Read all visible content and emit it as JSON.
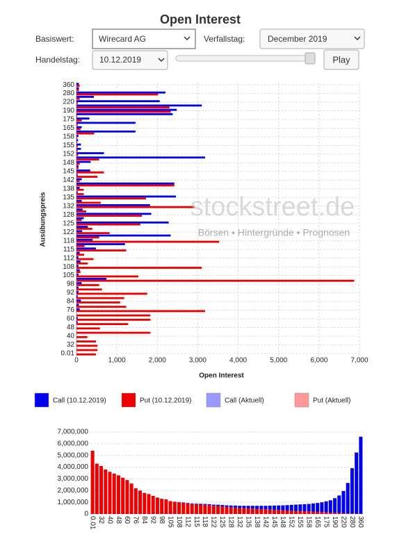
{
  "page": {
    "title": "Open Interest",
    "controls": {
      "underlying_label": "Basiswert:",
      "underlying": "Wirecard AG",
      "expiry_label": "Verfallstag:",
      "expiry": "December 2019",
      "trade_date_label": "Handelstag:",
      "trade_date": "10.12.2019",
      "play": "Play"
    },
    "watermark": {
      "brand": "stockstreet.de",
      "tagline": "Börsen • Hintergründe • Prognosen"
    }
  },
  "chart_data": [
    {
      "type": "hbar",
      "xlabel": "Open Interest",
      "ylabel": "Ausübungspreis",
      "categories": [
        "0.01",
        null,
        "32",
        null,
        "40",
        null,
        "48",
        null,
        "60",
        null,
        "76",
        null,
        "84",
        null,
        "92",
        null,
        "98",
        null,
        "105",
        null,
        "108",
        null,
        "112",
        null,
        "115",
        null,
        "118",
        null,
        "122",
        null,
        "125",
        null,
        "128",
        null,
        "132",
        null,
        "135",
        null,
        "138",
        null,
        "142",
        null,
        "145",
        null,
        "148",
        null,
        "152",
        null,
        "155",
        null,
        "158",
        null,
        "165",
        null,
        "175",
        null,
        "190",
        null,
        "220",
        null,
        "280",
        null,
        "360"
      ],
      "series": [
        {
          "name": "Call (10.12.2019)",
          "color": "#0000ee",
          "values": [
            0,
            0,
            0,
            0,
            0,
            0,
            0,
            30,
            30,
            0,
            80,
            60,
            110,
            30,
            50,
            50,
            130,
            740,
            50,
            80,
            50,
            100,
            50,
            80,
            480,
            1200,
            400,
            2330,
            140,
            280,
            2280,
            180,
            1850,
            150,
            1820,
            130,
            2460,
            30,
            80,
            2420,
            130,
            30,
            340,
            50,
            350,
            3180,
            680,
            110,
            110,
            40,
            50,
            1460,
            130,
            1460,
            320,
            2380,
            2480,
            3100,
            2060,
            430,
            2200,
            60,
            60
          ]
        },
        {
          "name": "Put (10.12.2019)",
          "color": "#ee0000",
          "values": [
            480,
            520,
            520,
            480,
            270,
            1830,
            580,
            1280,
            1830,
            1830,
            3180,
            1230,
            1080,
            1180,
            1750,
            630,
            560,
            6870,
            1530,
            100,
            3100,
            280,
            420,
            190,
            1230,
            200,
            3530,
            560,
            820,
            390,
            1580,
            130,
            1620,
            240,
            2920,
            600,
            1720,
            180,
            180,
            2420,
            80,
            520,
            680,
            50,
            80,
            560,
            40,
            30,
            30,
            20,
            20,
            440,
            100,
            30,
            130,
            20,
            2330,
            2300,
            30,
            80,
            2020,
            60,
            80
          ]
        },
        {
          "name": "Call (Aktuell)",
          "color": "#9999ff",
          "values": [
            null,
            null,
            null,
            null,
            null,
            null,
            null,
            null,
            null,
            null,
            null,
            null,
            null,
            null,
            null,
            null,
            null,
            null,
            null,
            null,
            null,
            null,
            null,
            null,
            null,
            null,
            null,
            null,
            null,
            null,
            null,
            null,
            null,
            null,
            null,
            null,
            null,
            null,
            null,
            null,
            null,
            null,
            null,
            null,
            null,
            null,
            null,
            null,
            null,
            null,
            null,
            null,
            null,
            null,
            null,
            null,
            null,
            null,
            null,
            null,
            null,
            null,
            null
          ]
        },
        {
          "name": "Put (Aktuell)",
          "color": "#ff9999",
          "values": [
            null,
            null,
            null,
            null,
            null,
            null,
            null,
            null,
            null,
            null,
            null,
            null,
            null,
            null,
            null,
            null,
            null,
            null,
            null,
            null,
            null,
            null,
            null,
            null,
            null,
            null,
            null,
            null,
            null,
            null,
            null,
            null,
            null,
            null,
            null,
            null,
            null,
            null,
            null,
            null,
            null,
            null,
            null,
            null,
            null,
            null,
            null,
            null,
            null,
            null,
            null,
            null,
            null,
            null,
            null,
            null,
            null,
            null,
            null,
            null,
            null,
            null,
            null
          ]
        }
      ],
      "xlim": [
        0,
        7000
      ],
      "xticks": [
        0,
        {
          "value": 1000,
          "label": "1,000"
        },
        {
          "value": 2000,
          "label": "2,000"
        },
        {
          "value": 3000,
          "label": "3,000"
        },
        {
          "value": 4000,
          "label": "4,000"
        },
        {
          "value": 5000,
          "label": "5,000"
        },
        {
          "value": 6000,
          "label": "6,000"
        },
        {
          "value": 7000,
          "label": "7,000"
        }
      ],
      "grid": true
    },
    {
      "type": "stacked_bar",
      "categories": [
        "0.01",
        null,
        "32",
        null,
        "40",
        null,
        "48",
        null,
        "60",
        null,
        "76",
        null,
        "84",
        null,
        "92",
        null,
        "98",
        null,
        "105",
        null,
        "108",
        null,
        "112",
        null,
        "115",
        null,
        "118",
        null,
        "122",
        null,
        "125",
        null,
        "128",
        null,
        "132",
        null,
        "135",
        null,
        "138",
        null,
        "142",
        null,
        "145",
        null,
        "148",
        null,
        "152",
        null,
        "155",
        null,
        "158",
        null,
        "165",
        null,
        "175",
        null,
        "190",
        null,
        "220",
        null,
        "280",
        null,
        "360"
      ],
      "series": [
        {
          "color": "#ee0000",
          "values": [
            5400000,
            4300000,
            4100000,
            3800000,
            3600000,
            3450000,
            3300000,
            3100000,
            2900000,
            2600000,
            2200000,
            2000000,
            1800000,
            1700000,
            1550000,
            1400000,
            1300000,
            1250000,
            1100000,
            1050000,
            1000000,
            950000,
            900000,
            850000,
            820000,
            800000,
            780000,
            750000,
            700000,
            680000,
            650000,
            600000,
            570000,
            550000,
            520000,
            500000,
            480000,
            460000,
            440000,
            420000,
            400000,
            380000,
            360000,
            340000,
            320000,
            300000,
            280000,
            260000,
            250000,
            240000,
            220000,
            200000,
            180000,
            160000,
            140000,
            120000,
            100000,
            80000,
            60000,
            50000,
            40000,
            30000,
            20000
          ]
        },
        {
          "color": "#0000ee",
          "values": [
            0,
            0,
            0,
            0,
            0,
            0,
            0,
            0,
            0,
            0,
            0,
            0,
            0,
            0,
            0,
            0,
            0,
            0,
            0,
            0,
            20000,
            30000,
            40000,
            50000,
            60000,
            70000,
            80000,
            90000,
            100000,
            110000,
            120000,
            140000,
            160000,
            170000,
            180000,
            200000,
            220000,
            240000,
            260000,
            280000,
            300000,
            330000,
            360000,
            390000,
            420000,
            460000,
            500000,
            540000,
            570000,
            600000,
            640000,
            700000,
            760000,
            840000,
            940000,
            1050000,
            1250000,
            1500000,
            1900000,
            2600000,
            3870000,
            5220000,
            6580000
          ]
        }
      ],
      "ylim": [
        0,
        7000000
      ],
      "yticks": [
        0,
        {
          "value": 1000000,
          "label": "1,000,000"
        },
        {
          "value": 2000000,
          "label": "2,000,000"
        },
        {
          "value": 3000000,
          "label": "3,000,000"
        },
        {
          "value": 4000000,
          "label": "4,000,000"
        },
        {
          "value": 5000000,
          "label": "5,000,000"
        },
        {
          "value": 6000000,
          "label": "6,000,000"
        },
        {
          "value": 7000000,
          "label": "7,000,000"
        }
      ],
      "grid": true
    }
  ]
}
